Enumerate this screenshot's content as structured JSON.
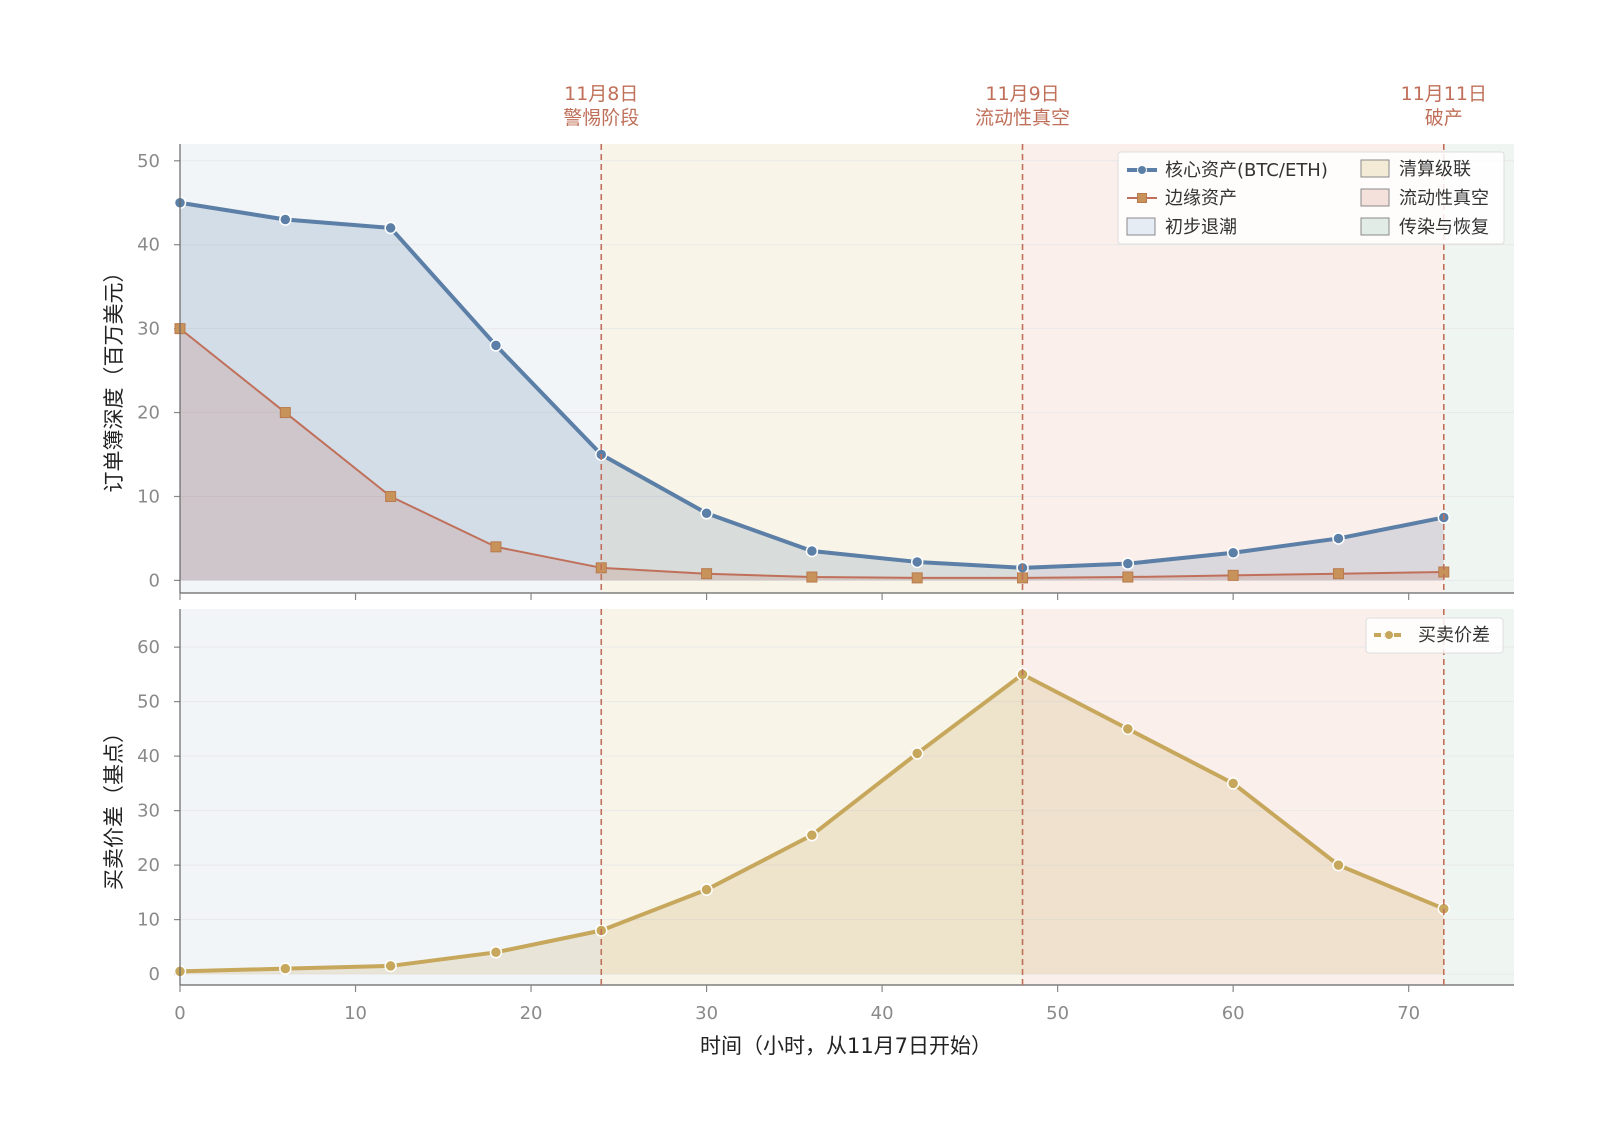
{
  "chart_data": [
    {
      "type": "area",
      "ylabel": "订单簿深度（百万美元）",
      "ylim": [
        -1.5,
        52
      ],
      "yticks": [
        0,
        10,
        20,
        30,
        40,
        50
      ],
      "xlim": [
        0,
        76
      ],
      "x": [
        0,
        6,
        12,
        18,
        24,
        30,
        36,
        42,
        48,
        54,
        60,
        66,
        72
      ],
      "series": [
        {
          "name": "核心资产(BTC/ETH)",
          "color": "#5b7fa6",
          "values": [
            45,
            43,
            42,
            28,
            15,
            8,
            3.5,
            2.2,
            1.5,
            2,
            3.3,
            5,
            7.5
          ]
        },
        {
          "name": "边缘资产",
          "color": "#c0705a",
          "values": [
            30,
            20,
            10,
            4,
            1.5,
            0.8,
            0.4,
            0.3,
            0.3,
            0.4,
            0.6,
            0.8,
            1
          ]
        }
      ],
      "legend_position": "top-right"
    },
    {
      "type": "area",
      "ylabel": "买卖价差（基点）",
      "xlabel": "时间（小时，从11月7日开始）",
      "ylim": [
        -2,
        67
      ],
      "yticks": [
        0,
        10,
        20,
        30,
        40,
        50,
        60
      ],
      "xlim": [
        0,
        76
      ],
      "xticks": [
        0,
        10,
        20,
        30,
        40,
        50,
        60,
        70
      ],
      "x": [
        0,
        6,
        12,
        18,
        24,
        30,
        36,
        42,
        48,
        54,
        60,
        66,
        72
      ],
      "series": [
        {
          "name": "买卖价差",
          "color": "#c6a75c",
          "values": [
            0.5,
            1,
            1.5,
            4,
            8,
            15.5,
            25.5,
            40.5,
            55,
            45,
            35,
            20,
            12
          ]
        }
      ],
      "legend_position": "top-right"
    }
  ],
  "phases": [
    {
      "name": "初步退潮",
      "x0": 0,
      "x1": 24,
      "color": "#e6ecf3"
    },
    {
      "name": "清算级联",
      "x0": 24,
      "x1": 48,
      "color": "#f3ebd6"
    },
    {
      "name": "流动性真空",
      "x0": 48,
      "x1": 72,
      "color": "#f5e1db"
    },
    {
      "name": "传染与恢复",
      "x0": 72,
      "x1": 76,
      "color": "#e1ece6"
    }
  ],
  "events": [
    {
      "x": 24,
      "date": "11月8日",
      "label": "警惕阶段"
    },
    {
      "x": 48,
      "date": "11月9日",
      "label": "流动性真空"
    },
    {
      "x": 72,
      "date": "11月11日",
      "label": "破产"
    }
  ],
  "colors": {
    "event_line": "#c0705a",
    "axis": "#555555",
    "grid": "#e9e9e9"
  }
}
